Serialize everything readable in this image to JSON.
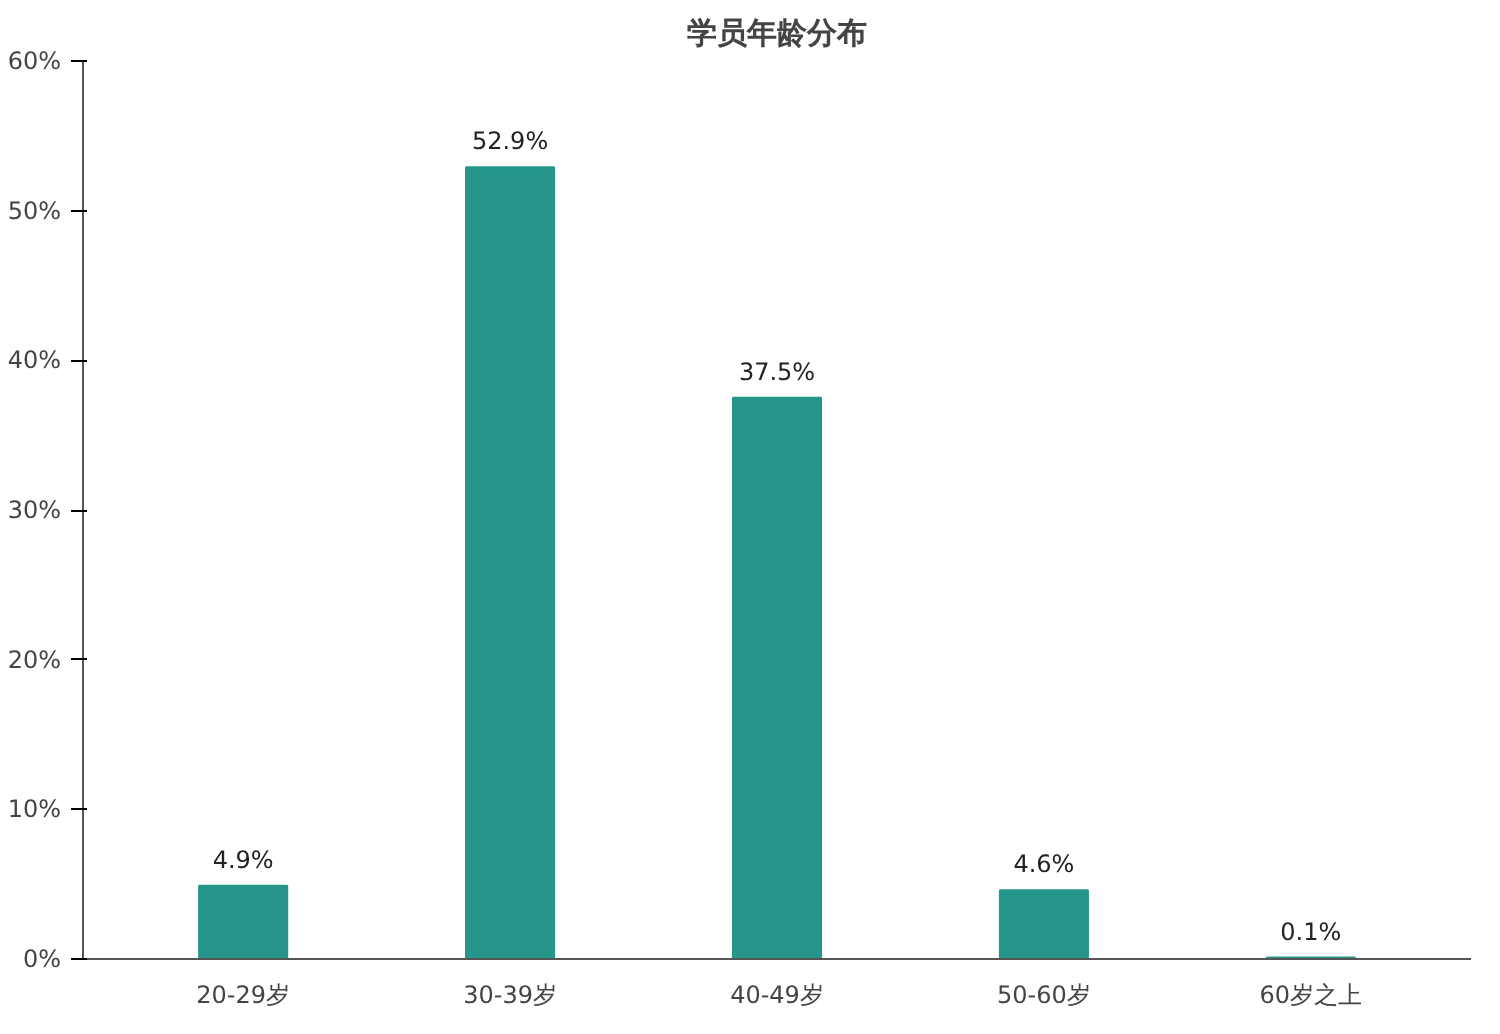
{
  "chart_data": {
    "type": "bar",
    "title": "学员年龄分布",
    "categories": [
      "20-29岁",
      "30-39岁",
      "40-49岁",
      "50-60岁",
      "60岁之上"
    ],
    "values": [
      4.9,
      52.9,
      37.5,
      4.6,
      0.1
    ],
    "value_labels": [
      "4.9%",
      "52.9%",
      "37.5%",
      "4.6%",
      "0.1%"
    ],
    "color": "#26968a",
    "ylim": [
      0,
      60
    ],
    "yticks": [
      {
        "value": 0,
        "label": "0%"
      },
      {
        "value": 10,
        "label": "10%"
      },
      {
        "value": 20,
        "label": "20%"
      },
      {
        "value": 30,
        "label": "30%"
      },
      {
        "value": 40,
        "label": "40%"
      },
      {
        "value": 50,
        "label": "50%"
      },
      {
        "value": 60,
        "label": "60%"
      }
    ],
    "grid": false
  }
}
